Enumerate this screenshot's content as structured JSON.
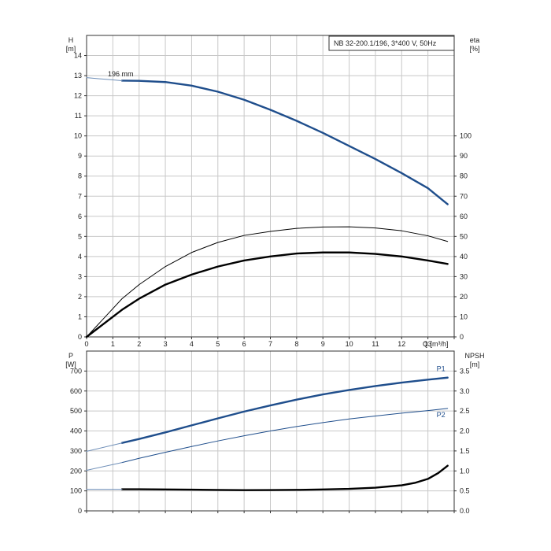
{
  "title_box": "NB 32-200.1/196, 3*400 V, 50Hz",
  "chart_data": [
    {
      "type": "line",
      "panel": "top",
      "xlabel": "Q [m³/h]",
      "xlim": [
        0,
        14
      ],
      "x_ticks": [
        0,
        1,
        2,
        3,
        4,
        5,
        6,
        7,
        8,
        9,
        10,
        11,
        12,
        13
      ],
      "left_axis": {
        "label_top": "H",
        "label_unit": "[m]",
        "ylim": [
          0,
          15
        ],
        "ticks": [
          0,
          1,
          2,
          3,
          4,
          5,
          6,
          7,
          8,
          9,
          10,
          11,
          12,
          13,
          14
        ]
      },
      "right_axis": {
        "label_top": "eta",
        "label_unit": "[%]",
        "ylim": [
          0,
          150
        ],
        "ticks": [
          0,
          10,
          20,
          30,
          40,
          50,
          60,
          70,
          80,
          90,
          100
        ]
      },
      "annotation": "196 mm",
      "series": [
        {
          "axis": "left",
          "color": "#1f4e8c",
          "style": "thick",
          "x": [
            1.35,
            2,
            3,
            4,
            5,
            6,
            7,
            8,
            9,
            10,
            11,
            12,
            13,
            13.75
          ],
          "y": [
            12.75,
            12.74,
            12.68,
            12.5,
            12.2,
            11.8,
            11.3,
            10.75,
            10.15,
            9.5,
            8.85,
            8.15,
            7.4,
            6.6
          ]
        },
        {
          "axis": "left",
          "color": "#6f8fb8",
          "style": "thin",
          "x": [
            0,
            0.7,
            1.35
          ],
          "y": [
            12.9,
            12.82,
            12.75
          ]
        },
        {
          "axis": "right",
          "color": "#000000",
          "style": "thin",
          "x": [
            0,
            1.35,
            2,
            3,
            4,
            5,
            6,
            7,
            8,
            9,
            10,
            11,
            12,
            13,
            13.75
          ],
          "y": [
            0,
            19,
            26,
            35,
            42,
            47,
            50.5,
            52.5,
            54,
            54.7,
            54.8,
            54.2,
            52.8,
            50.3,
            47.5
          ]
        },
        {
          "axis": "right",
          "color": "#000000",
          "style": "thick",
          "x": [
            0,
            1.35,
            2,
            3,
            4,
            5,
            6,
            7,
            8,
            9,
            10,
            11,
            12,
            13,
            13.75
          ],
          "y": [
            0,
            13.5,
            19,
            26,
            31,
            35,
            38,
            40,
            41.5,
            42,
            42,
            41.3,
            40,
            38,
            36.3
          ]
        }
      ]
    },
    {
      "type": "line",
      "panel": "bottom",
      "xlim": [
        0,
        14
      ],
      "left_axis": {
        "label_top": "P",
        "label_unit": "[W]",
        "ylim": [
          0,
          800
        ],
        "ticks": [
          0,
          100,
          200,
          300,
          400,
          500,
          600,
          700
        ]
      },
      "right_axis": {
        "label_top": "NPSH",
        "label_unit": "[m]",
        "ylim": [
          0,
          4
        ],
        "ticks": [
          "0.0",
          "0.5",
          "1.0",
          "1.5",
          "2.0",
          "2.5",
          "3.0",
          "3.5"
        ]
      },
      "series": [
        {
          "name": "P1",
          "axis": "left",
          "color": "#1f4e8c",
          "style": "thick",
          "x": [
            1.35,
            2,
            3,
            4,
            5,
            6,
            7,
            8,
            9,
            10,
            11,
            12,
            13,
            13.75
          ],
          "y": [
            340,
            360,
            393,
            428,
            463,
            497,
            528,
            557,
            583,
            605,
            625,
            642,
            657,
            667
          ]
        },
        {
          "axis": "left",
          "color": "#6f8fb8",
          "style": "thin",
          "x": [
            0,
            1.35
          ],
          "y": [
            298,
            340
          ]
        },
        {
          "name": "P2",
          "axis": "left",
          "color": "#1f4e8c",
          "style": "thin",
          "x": [
            1.35,
            2,
            3,
            4,
            5,
            6,
            7,
            8,
            9,
            10,
            11,
            12,
            13,
            13.75
          ],
          "y": [
            242,
            263,
            293,
            322,
            350,
            376,
            400,
            422,
            442,
            460,
            475,
            489,
            502,
            513
          ]
        },
        {
          "axis": "left",
          "color": "#6f8fb8",
          "style": "thin",
          "x": [
            0,
            1.35
          ],
          "y": [
            203,
            242
          ]
        },
        {
          "axis": "right",
          "color": "#000000",
          "style": "thick",
          "x": [
            1.35,
            2,
            3,
            4,
            5,
            6,
            7,
            8,
            9,
            10,
            11,
            12,
            12.5,
            13,
            13.4,
            13.75
          ],
          "y": [
            0.54,
            0.54,
            0.535,
            0.53,
            0.523,
            0.518,
            0.52,
            0.525,
            0.535,
            0.55,
            0.58,
            0.64,
            0.7,
            0.8,
            0.95,
            1.13
          ]
        },
        {
          "axis": "right",
          "color": "#6f8fb8",
          "style": "thin",
          "x": [
            0,
            1.35
          ],
          "y": [
            0.54,
            0.54
          ]
        }
      ]
    }
  ]
}
